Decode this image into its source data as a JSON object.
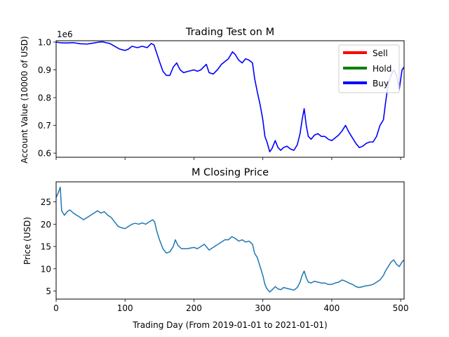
{
  "chart_data": [
    {
      "type": "line",
      "title": "Trading Test on M",
      "xlabel": "",
      "ylabel": "Account Value (10000 of USD)",
      "offset_label": "1e6",
      "xlim": [
        0,
        505
      ],
      "ylim": [
        0.585,
        1.005
      ],
      "yticks": [
        0.6,
        0.7,
        0.8,
        0.9,
        1.0
      ],
      "ytick_labels": [
        "0.6",
        "0.7",
        "0.8",
        "0.9",
        "1.0"
      ],
      "xticks": [
        0,
        100,
        200,
        300,
        400,
        500
      ],
      "legend": {
        "placement": "top-right",
        "entries": [
          {
            "label": "Sell",
            "color": "#ff0000"
          },
          {
            "label": "Hold",
            "color": "#008000"
          },
          {
            "label": "Buy",
            "color": "#0000ff"
          }
        ]
      },
      "series": [
        {
          "color": "#0000ff",
          "points": [
            [
              0,
              1.0
            ],
            [
              5,
              0.998
            ],
            [
              15,
              0.997
            ],
            [
              25,
              0.998
            ],
            [
              35,
              0.994
            ],
            [
              45,
              0.993
            ],
            [
              55,
              0.997
            ],
            [
              62,
              1.0
            ],
            [
              68,
              1.001
            ],
            [
              72,
              0.998
            ],
            [
              78,
              0.995
            ],
            [
              85,
              0.985
            ],
            [
              92,
              0.975
            ],
            [
              100,
              0.97
            ],
            [
              105,
              0.975
            ],
            [
              110,
              0.985
            ],
            [
              118,
              0.98
            ],
            [
              125,
              0.985
            ],
            [
              132,
              0.98
            ],
            [
              138,
              0.995
            ],
            [
              142,
              0.99
            ],
            [
              146,
              0.96
            ],
            [
              150,
              0.93
            ],
            [
              155,
              0.895
            ],
            [
              160,
              0.88
            ],
            [
              165,
              0.88
            ],
            [
              170,
              0.91
            ],
            [
              175,
              0.925
            ],
            [
              180,
              0.9
            ],
            [
              185,
              0.89
            ],
            [
              192,
              0.895
            ],
            [
              200,
              0.9
            ],
            [
              205,
              0.895
            ],
            [
              210,
              0.9
            ],
            [
              218,
              0.92
            ],
            [
              222,
              0.89
            ],
            [
              228,
              0.885
            ],
            [
              234,
              0.9
            ],
            [
              240,
              0.92
            ],
            [
              245,
              0.93
            ],
            [
              250,
              0.94
            ],
            [
              256,
              0.965
            ],
            [
              260,
              0.955
            ],
            [
              265,
              0.935
            ],
            [
              270,
              0.925
            ],
            [
              275,
              0.94
            ],
            [
              280,
              0.935
            ],
            [
              285,
              0.925
            ],
            [
              288,
              0.87
            ],
            [
              292,
              0.82
            ],
            [
              296,
              0.775
            ],
            [
              300,
              0.72
            ],
            [
              303,
              0.66
            ],
            [
              306,
              0.64
            ],
            [
              310,
              0.605
            ],
            [
              313,
              0.615
            ],
            [
              318,
              0.645
            ],
            [
              322,
              0.62
            ],
            [
              326,
              0.61
            ],
            [
              330,
              0.62
            ],
            [
              335,
              0.625
            ],
            [
              340,
              0.615
            ],
            [
              345,
              0.61
            ],
            [
              350,
              0.63
            ],
            [
              354,
              0.67
            ],
            [
              357,
              0.72
            ],
            [
              360,
              0.76
            ],
            [
              363,
              0.7
            ],
            [
              366,
              0.66
            ],
            [
              370,
              0.65
            ],
            [
              375,
              0.665
            ],
            [
              380,
              0.67
            ],
            [
              385,
              0.66
            ],
            [
              390,
              0.66
            ],
            [
              395,
              0.65
            ],
            [
              400,
              0.645
            ],
            [
              405,
              0.655
            ],
            [
              410,
              0.665
            ],
            [
              415,
              0.68
            ],
            [
              420,
              0.7
            ],
            [
              425,
              0.675
            ],
            [
              430,
              0.655
            ],
            [
              435,
              0.635
            ],
            [
              440,
              0.62
            ],
            [
              445,
              0.625
            ],
            [
              450,
              0.635
            ],
            [
              455,
              0.64
            ],
            [
              460,
              0.64
            ],
            [
              465,
              0.66
            ],
            [
              470,
              0.7
            ],
            [
              475,
              0.72
            ],
            [
              478,
              0.78
            ],
            [
              482,
              0.85
            ],
            [
              486,
              0.88
            ],
            [
              490,
              0.9
            ],
            [
              494,
              0.88
            ],
            [
              498,
              0.83
            ],
            [
              502,
              0.9
            ],
            [
              505,
              0.91
            ]
          ]
        }
      ]
    },
    {
      "type": "line",
      "title": "M Closing Price",
      "xlabel": "Trading Day (From 2019-01-01 to 2021-01-01)",
      "ylabel": "Price (USD)",
      "xlim": [
        0,
        505
      ],
      "ylim": [
        3.2,
        29.5
      ],
      "yticks": [
        5,
        10,
        15,
        20,
        25
      ],
      "xticks": [
        0,
        100,
        200,
        300,
        400,
        500
      ],
      "series": [
        {
          "color": "#1f77b4",
          "points": [
            [
              0,
              26.0
            ],
            [
              3,
              27.0
            ],
            [
              6,
              28.3
            ],
            [
              8,
              23.0
            ],
            [
              12,
              22.0
            ],
            [
              16,
              22.8
            ],
            [
              20,
              23.2
            ],
            [
              25,
              22.5
            ],
            [
              30,
              22.0
            ],
            [
              35,
              21.5
            ],
            [
              40,
              21.0
            ],
            [
              45,
              21.5
            ],
            [
              50,
              22.0
            ],
            [
              55,
              22.5
            ],
            [
              60,
              23.0
            ],
            [
              65,
              22.5
            ],
            [
              70,
              22.8
            ],
            [
              75,
              22.0
            ],
            [
              80,
              21.5
            ],
            [
              85,
              20.5
            ],
            [
              90,
              19.5
            ],
            [
              95,
              19.2
            ],
            [
              100,
              19.0
            ],
            [
              105,
              19.5
            ],
            [
              110,
              20.0
            ],
            [
              115,
              20.2
            ],
            [
              120,
              20.0
            ],
            [
              125,
              20.3
            ],
            [
              130,
              20.0
            ],
            [
              135,
              20.5
            ],
            [
              140,
              21.0
            ],
            [
              143,
              20.5
            ],
            [
              146,
              18.5
            ],
            [
              150,
              16.5
            ],
            [
              155,
              14.5
            ],
            [
              160,
              13.5
            ],
            [
              165,
              13.8
            ],
            [
              170,
              15.0
            ],
            [
              173,
              16.5
            ],
            [
              177,
              15.2
            ],
            [
              182,
              14.5
            ],
            [
              190,
              14.5
            ],
            [
              200,
              14.8
            ],
            [
              205,
              14.5
            ],
            [
              210,
              15.0
            ],
            [
              215,
              15.5
            ],
            [
              222,
              14.2
            ],
            [
              228,
              14.8
            ],
            [
              235,
              15.5
            ],
            [
              240,
              16.0
            ],
            [
              245,
              16.5
            ],
            [
              250,
              16.5
            ],
            [
              255,
              17.2
            ],
            [
              260,
              16.8
            ],
            [
              265,
              16.2
            ],
            [
              270,
              16.5
            ],
            [
              275,
              16.0
            ],
            [
              280,
              16.2
            ],
            [
              285,
              15.5
            ],
            [
              288,
              13.5
            ],
            [
              292,
              12.5
            ],
            [
              296,
              10.5
            ],
            [
              300,
              8.5
            ],
            [
              303,
              6.5
            ],
            [
              306,
              5.5
            ],
            [
              310,
              4.8
            ],
            [
              313,
              5.2
            ],
            [
              318,
              6.0
            ],
            [
              322,
              5.5
            ],
            [
              326,
              5.3
            ],
            [
              330,
              5.8
            ],
            [
              335,
              5.6
            ],
            [
              340,
              5.4
            ],
            [
              345,
              5.2
            ],
            [
              350,
              5.8
            ],
            [
              354,
              7.0
            ],
            [
              357,
              8.5
            ],
            [
              360,
              9.5
            ],
            [
              363,
              8.0
            ],
            [
              366,
              7.0
            ],
            [
              370,
              6.8
            ],
            [
              375,
              7.2
            ],
            [
              380,
              7.0
            ],
            [
              385,
              6.8
            ],
            [
              390,
              6.8
            ],
            [
              395,
              6.5
            ],
            [
              400,
              6.5
            ],
            [
              405,
              6.8
            ],
            [
              410,
              7.0
            ],
            [
              415,
              7.5
            ],
            [
              420,
              7.2
            ],
            [
              425,
              6.8
            ],
            [
              430,
              6.5
            ],
            [
              435,
              6.0
            ],
            [
              440,
              5.8
            ],
            [
              445,
              6.0
            ],
            [
              450,
              6.2
            ],
            [
              455,
              6.3
            ],
            [
              460,
              6.5
            ],
            [
              465,
              7.0
            ],
            [
              470,
              7.5
            ],
            [
              475,
              8.5
            ],
            [
              478,
              9.5
            ],
            [
              482,
              10.5
            ],
            [
              486,
              11.5
            ],
            [
              490,
              12.0
            ],
            [
              494,
              11.0
            ],
            [
              498,
              10.5
            ],
            [
              502,
              11.5
            ],
            [
              505,
              12.0
            ]
          ]
        }
      ]
    }
  ]
}
